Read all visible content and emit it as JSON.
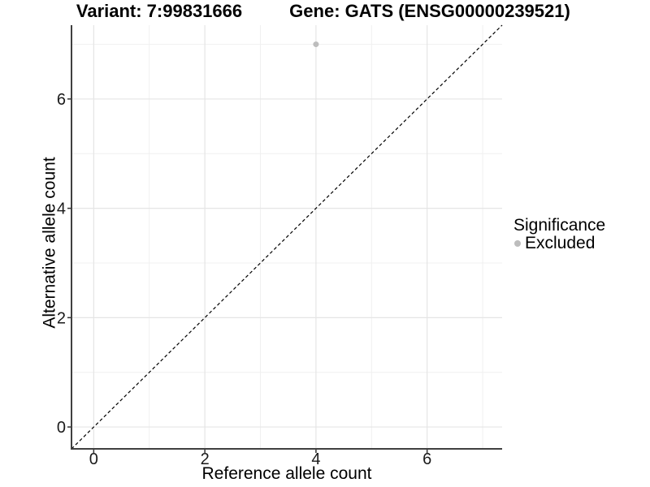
{
  "figure": {
    "title_variant": "Variant: 7:99831666",
    "title_gene": "Gene: GATS (ENSG00000239521)"
  },
  "legend": {
    "title": "Significance",
    "items": [
      {
        "label": "Excluded",
        "color": "#bdbdbd"
      }
    ]
  },
  "chart_data": {
    "type": "scatter",
    "title": "Variant: 7:99831666    Gene: GATS (ENSG00000239521)",
    "xlabel": "Reference allele count",
    "ylabel": "Alternative allele count",
    "xlim": [
      -0.4,
      7.35
    ],
    "ylim": [
      -0.4,
      7.35
    ],
    "x_ticks": [
      0,
      2,
      4,
      6
    ],
    "y_ticks": [
      0,
      2,
      4,
      6
    ],
    "grid_major": [
      0,
      2,
      4,
      6
    ],
    "grid_minor": [
      1,
      3,
      5,
      7
    ],
    "grid": "on",
    "legend_position": "right",
    "legend_title": "Significance",
    "series": [
      {
        "name": "Excluded",
        "color": "#bdbdbd",
        "points": [
          {
            "x": 4,
            "y": 7
          }
        ]
      }
    ],
    "reference_line": {
      "slope": 1,
      "intercept": 0,
      "style": "dashed",
      "color": "#000000"
    },
    "colors": {
      "grid_major": "#e5e5e5",
      "grid_minor": "#f0f0f0",
      "axis_line": "#404040",
      "tick_mark": "#333333",
      "tick_label": "#1a1a1a",
      "background": "#ffffff"
    }
  }
}
